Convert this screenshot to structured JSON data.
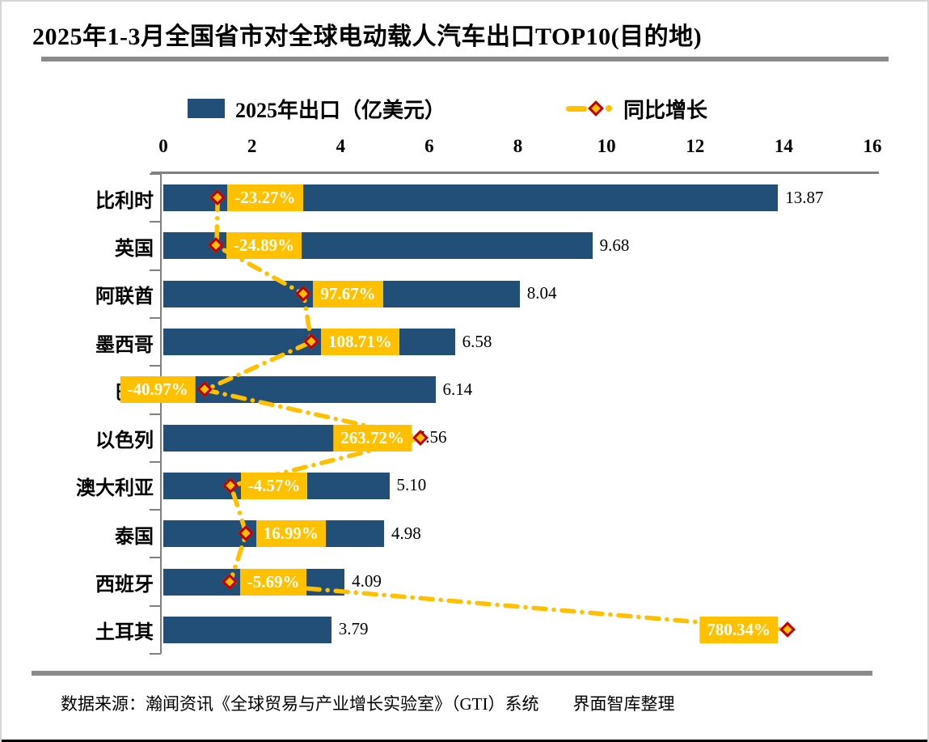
{
  "page": {
    "title": "2025年1-3月全国省市对全球电动载人汽车出口TOP10(目的地)",
    "source_note": "数据来源：瀚闻资讯《全球贸易与产业增长实验室》（GTI）系统　　界面智库整理"
  },
  "legend": {
    "bar_label": "2025年出口（亿美元）",
    "line_label": "同比增长"
  },
  "colors": {
    "bar": "#224F78",
    "accent": "#FFC000",
    "marker_border": "#C00000",
    "growth_label_text": "#FFFFFF",
    "axis": "#808080",
    "rule": "#8A8A8A",
    "frame_border": "#D6D6D6",
    "text": "#000000"
  },
  "chart_data": {
    "type": "bar",
    "orientation": "horizontal",
    "title": "2025年1-3月全国省市对全球电动载人汽车出口TOP10(目的地)",
    "categories": [
      "比利时",
      "英国",
      "阿联酋",
      "墨西哥",
      "巴西",
      "以色列",
      "澳大利亚",
      "泰国",
      "西班牙",
      "土耳其"
    ],
    "series": [
      {
        "name": "2025年出口（亿美元）",
        "type": "bar",
        "values": [
          13.87,
          9.68,
          8.04,
          6.58,
          6.14,
          5.56,
          5.1,
          4.98,
          4.09,
          3.79
        ],
        "labels": [
          "13.87",
          "9.68",
          "8.04",
          "6.58",
          "6.14",
          "5.56",
          "5.10",
          "4.98",
          "4.09",
          "3.79"
        ]
      },
      {
        "name": "同比增长",
        "type": "line",
        "values": [
          -23.27,
          -24.89,
          97.67,
          108.71,
          -40.97,
          263.72,
          -4.57,
          16.99,
          -5.69,
          780.34
        ],
        "labels": [
          "-23.27%",
          "-24.89%",
          "97.67%",
          "108.71%",
          "-40.97%",
          "263.72%",
          "-4.57%",
          "16.99%",
          "-5.69%",
          "780.34%"
        ],
        "label_side": [
          "right",
          "right",
          "right",
          "right",
          "left",
          "left",
          "right",
          "right",
          "right",
          "left"
        ]
      }
    ],
    "value_axis": {
      "min": 0,
      "max": 16,
      "ticks": [
        0,
        2,
        4,
        6,
        8,
        10,
        12,
        14,
        16
      ],
      "position": "top"
    },
    "growth_axis": {
      "min": -100,
      "max": 900,
      "visible": false
    },
    "legend_position": "top",
    "grid": false
  }
}
